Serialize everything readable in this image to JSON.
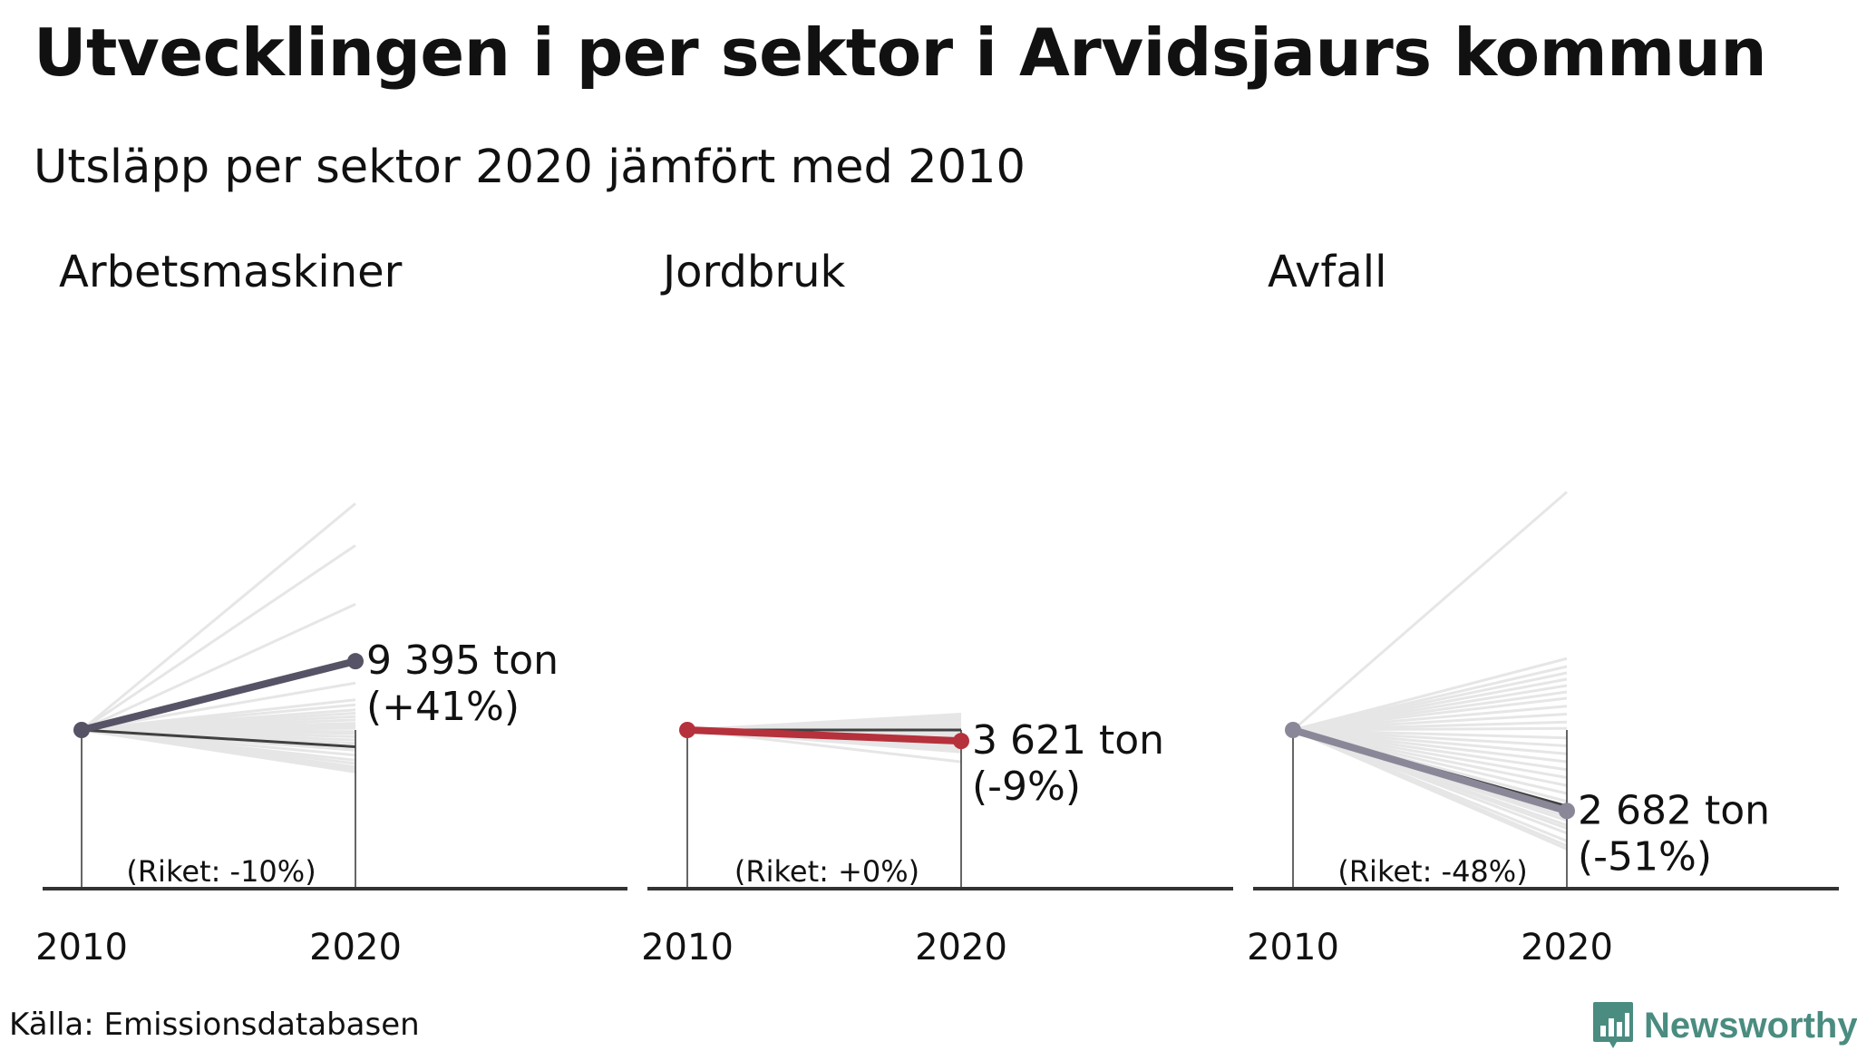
{
  "title": "Utvecklingen i per sektor i Arvidsjaurs kommun",
  "subtitle": "Utsläpp per sektor 2020 jämfört med 2010",
  "source": "Källa: Emissionsdatabasen",
  "brand": {
    "name": "Newsworthy",
    "logo_icon": "newsworthy-chart-icon",
    "color": "#4a8c80"
  },
  "colors": {
    "background_lines": "#e6e6e6",
    "axis": "#333333",
    "national": "#404040"
  },
  "chart_data": [
    {
      "type": "line",
      "title": "Arbetsmaskiner",
      "x": [
        "2010",
        "2020"
      ],
      "value_2020_label": "9 395 ton",
      "change_label": "(+41%)",
      "change_pct": 41,
      "national_label": "(Riket: -10%)",
      "national_change_pct": -10,
      "highlight_color": "#575366",
      "other_municipalities_change_pct": [
        135,
        110,
        75,
        28,
        18,
        15,
        12,
        10,
        8,
        6,
        4,
        3,
        2,
        1,
        -1,
        -2,
        -4,
        -6,
        -8,
        -12,
        -15,
        -18,
        -20,
        -22,
        -23,
        -24,
        -25
      ]
    },
    {
      "type": "line",
      "title": "Jordbruk",
      "x": [
        "2010",
        "2020"
      ],
      "value_2020_label": "3 621 ton",
      "change_label": "(-9%)",
      "change_pct": -9,
      "national_label": "(Riket: +0%)",
      "national_change_pct": 0,
      "highlight_color": "#b5313c",
      "other_municipalities_change_pct": [
        13,
        11,
        9,
        7,
        6,
        5,
        4,
        3,
        2,
        1,
        0,
        -1,
        -2,
        -3,
        -4,
        -5,
        -6,
        -7,
        -8,
        -9,
        -10,
        -11,
        -12,
        -13,
        -15,
        -16,
        -18,
        -26
      ]
    },
    {
      "type": "line",
      "title": "Avfall",
      "x": [
        "2010",
        "2020"
      ],
      "value_2020_label": "2 682 ton",
      "change_label": "(-51%)",
      "change_pct": -51,
      "national_label": "(Riket: -48%)",
      "national_change_pct": -48,
      "highlight_color": "#8a8898",
      "other_municipalities_change_pct": [
        150,
        45,
        40,
        36,
        32,
        28,
        24,
        20,
        15,
        10,
        5,
        1,
        -5,
        -10,
        -15,
        -20,
        -25,
        -30,
        -35,
        -40,
        -45,
        -48,
        -50,
        -53,
        -55,
        -57,
        -60,
        -62,
        -65,
        -70,
        -73,
        -75
      ]
    }
  ]
}
